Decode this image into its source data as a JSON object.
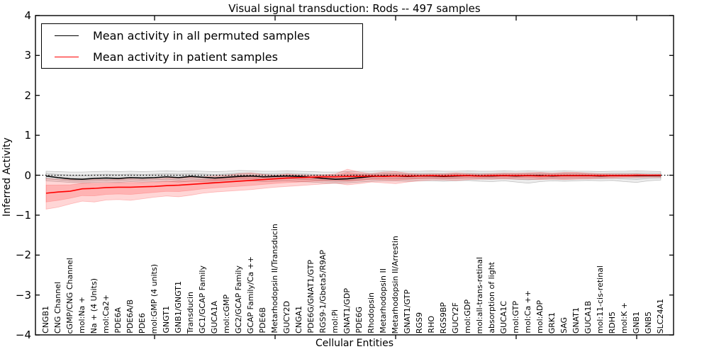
{
  "title": "Visual signal transduction: Rods -- 497 samples",
  "axes": {
    "ylabel": "Inferred Activity",
    "xlabel": "Cellular Entities",
    "ytick_labels": [
      "4",
      "3",
      "2",
      "1",
      "0",
      "−1",
      "−2",
      "−3",
      "−4"
    ]
  },
  "legend": {
    "items": [
      {
        "label": "Mean activity in all permuted samples",
        "color": "#000000"
      },
      {
        "label": "Mean activity in patient samples",
        "color": "#ff0000"
      }
    ]
  },
  "chart_data": {
    "type": "line",
    "title": "Visual signal transduction: Rods -- 497 samples",
    "xlabel": "Cellular Entities",
    "ylabel": "Inferred Activity",
    "ylim": [
      -4,
      4
    ],
    "grid": false,
    "zero_line_style": "dotted",
    "legend_position": "upper left",
    "xtick_positions": [
      9,
      19,
      29,
      39,
      49
    ],
    "categories": [
      "CNGB1",
      "CNG Channel",
      "cGMP/CNG Channel",
      "mol:Na +",
      "Na + (4 Units)",
      "mol:Ca2+",
      "PDE6A",
      "PDE6A/B",
      "PDE6",
      "mol:GMP (4 units)",
      "GNGT1",
      "GNB1/GNGT1",
      "Transducin",
      "GC1/GCAP Family",
      "GUCA1A",
      "mol:cGMP",
      "GC2/GCAP Family",
      "GCAP Family/Ca ++",
      "PDE6B",
      "Metarhodopsin II/Transducin",
      "GUCY2D",
      "CNGA1",
      "PDE6G/GNAT1/GTP",
      "RGS9-1/Gbeta5/R9AP",
      "mol:Pi",
      "GNAT1/GDP",
      "PDE6G",
      "Rhodopsin",
      "Metarhodopsin II",
      "Metarhodopsin II/Arrestin",
      "GNAT1/GTP",
      "RGS9",
      "RHO",
      "RGS9BP",
      "GUCY2F",
      "mol:GDP",
      "mol:all-trans-retinal",
      "absorption of light",
      "GUCA1C",
      "mol:GTP",
      "mol:Ca ++",
      "mol:ADP",
      "GRK1",
      "SAG",
      "GNAT1",
      "GUCA1B",
      "mol:11-cis-retinal",
      "RDH5",
      "mol:K +",
      "GNB1",
      "GNB5",
      "SLC24A1"
    ],
    "series": [
      {
        "name": "Mean activity in all permuted samples",
        "color": "#000000",
        "band_rgb": "0,0,0",
        "band_alpha": 0.07,
        "values": [
          -0.02,
          -0.06,
          -0.09,
          -0.1,
          -0.08,
          -0.07,
          -0.08,
          -0.06,
          -0.07,
          -0.06,
          -0.04,
          -0.06,
          -0.03,
          -0.05,
          -0.07,
          -0.05,
          -0.03,
          -0.02,
          -0.04,
          -0.03,
          -0.02,
          -0.03,
          -0.05,
          -0.08,
          -0.1,
          -0.09,
          -0.06,
          -0.03,
          -0.02,
          -0.02,
          -0.03,
          -0.02,
          -0.02,
          -0.03,
          -0.02,
          -0.01,
          -0.02,
          -0.02,
          -0.01,
          -0.02,
          -0.01,
          -0.01,
          -0.02,
          -0.01,
          -0.01,
          -0.01,
          -0.02,
          -0.01,
          -0.01,
          -0.01,
          -0.01,
          -0.01
        ],
        "upper": [
          0.1,
          0.09,
          0.08,
          0.08,
          0.09,
          0.1,
          0.09,
          0.1,
          0.09,
          0.1,
          0.11,
          0.1,
          0.11,
          0.1,
          0.09,
          0.1,
          0.12,
          0.11,
          0.1,
          0.1,
          0.11,
          0.1,
          0.09,
          0.08,
          0.08,
          0.09,
          0.1,
          0.1,
          0.11,
          0.1,
          0.1,
          0.1,
          0.11,
          0.1,
          0.1,
          0.11,
          0.1,
          0.1,
          0.11,
          0.1,
          0.11,
          0.1,
          0.1,
          0.11,
          0.1,
          0.1,
          0.09,
          0.1,
          0.1,
          0.11,
          0.1,
          0.09
        ],
        "lower": [
          -0.14,
          -0.16,
          -0.18,
          -0.19,
          -0.18,
          -0.17,
          -0.18,
          -0.16,
          -0.17,
          -0.16,
          -0.15,
          -0.17,
          -0.15,
          -0.16,
          -0.18,
          -0.17,
          -0.15,
          -0.14,
          -0.16,
          -0.15,
          -0.14,
          -0.16,
          -0.17,
          -0.19,
          -0.2,
          -0.19,
          -0.17,
          -0.15,
          -0.14,
          -0.14,
          -0.15,
          -0.14,
          -0.14,
          -0.15,
          -0.14,
          -0.13,
          -0.15,
          -0.16,
          -0.14,
          -0.17,
          -0.2,
          -0.16,
          -0.14,
          -0.15,
          -0.14,
          -0.13,
          -0.14,
          -0.13,
          -0.16,
          -0.18,
          -0.14,
          -0.12
        ]
      },
      {
        "name": "Mean activity in patient samples",
        "color": "#ff0000",
        "band_rgb": "255,0,0",
        "band_alpha": 0.16,
        "values": [
          -0.45,
          -0.42,
          -0.4,
          -0.34,
          -0.33,
          -0.31,
          -0.3,
          -0.3,
          -0.29,
          -0.28,
          -0.26,
          -0.25,
          -0.23,
          -0.21,
          -0.19,
          -0.17,
          -0.15,
          -0.13,
          -0.11,
          -0.09,
          -0.07,
          -0.06,
          -0.05,
          -0.04,
          -0.04,
          -0.03,
          -0.03,
          -0.02,
          -0.03,
          -0.02,
          -0.02,
          -0.02,
          -0.01,
          -0.02,
          -0.01,
          -0.01,
          -0.02,
          -0.01,
          -0.01,
          -0.01,
          -0.01,
          -0.02,
          -0.01,
          -0.01,
          -0.01,
          -0.01,
          -0.01,
          -0.01,
          -0.01,
          0.0,
          0.0,
          0.0
        ],
        "upper": [
          -0.08,
          -0.1,
          -0.11,
          -0.09,
          -0.1,
          -0.11,
          -0.1,
          -0.09,
          -0.1,
          -0.09,
          -0.07,
          -0.06,
          -0.05,
          -0.04,
          -0.02,
          0.0,
          0.04,
          0.06,
          0.02,
          0.0,
          0.03,
          0.01,
          0.0,
          0.01,
          0.03,
          0.15,
          0.08,
          0.04,
          0.08,
          0.09,
          0.05,
          0.03,
          0.03,
          0.04,
          0.06,
          0.04,
          0.03,
          0.04,
          0.05,
          0.05,
          0.06,
          0.07,
          0.05,
          0.07,
          0.07,
          0.05,
          0.04,
          0.03,
          0.03,
          0.03,
          0.02,
          0.02
        ],
        "lower": [
          -0.85,
          -0.8,
          -0.72,
          -0.65,
          -0.67,
          -0.62,
          -0.61,
          -0.63,
          -0.59,
          -0.55,
          -0.52,
          -0.54,
          -0.5,
          -0.45,
          -0.42,
          -0.4,
          -0.38,
          -0.36,
          -0.33,
          -0.3,
          -0.28,
          -0.26,
          -0.24,
          -0.22,
          -0.2,
          -0.24,
          -0.21,
          -0.17,
          -0.19,
          -0.21,
          -0.17,
          -0.14,
          -0.12,
          -0.12,
          -0.13,
          -0.11,
          -0.1,
          -0.1,
          -0.09,
          -0.1,
          -0.1,
          -0.11,
          -0.1,
          -0.11,
          -0.1,
          -0.09,
          -0.08,
          -0.07,
          -0.06,
          -0.06,
          -0.05,
          -0.05
        ]
      }
    ]
  }
}
